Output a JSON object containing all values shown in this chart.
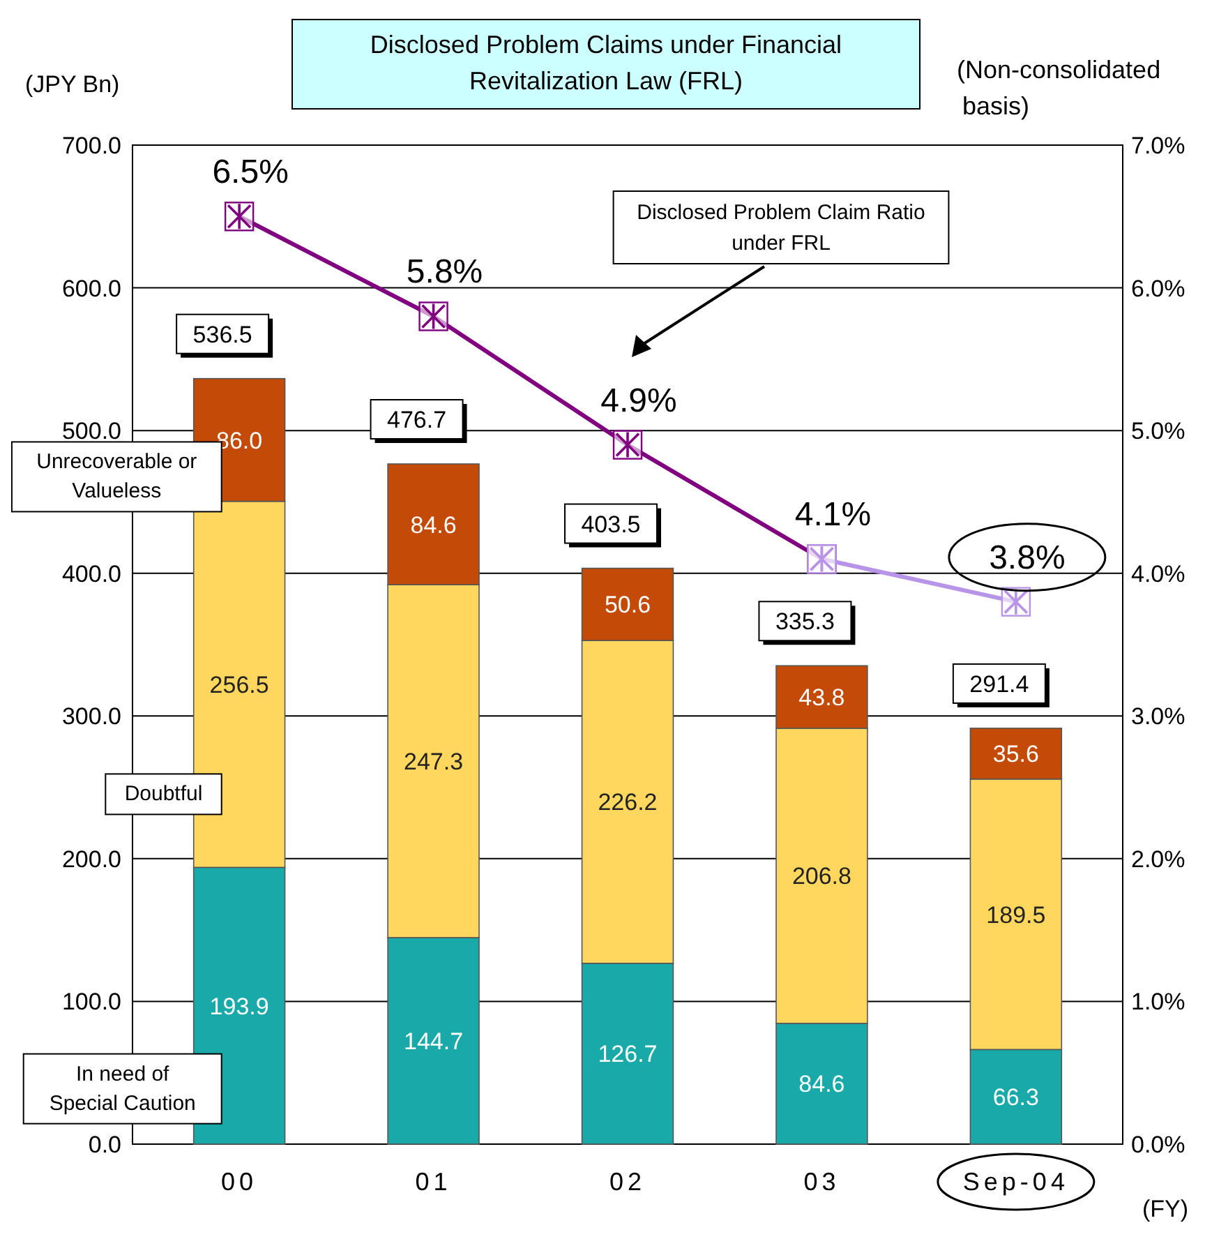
{
  "chart_data": {
    "type": "bar",
    "stacked": true,
    "title": "Disclosed Problem Claims under Financial Revitalization Law (FRL)",
    "ylabel": "(JPY Bn)",
    "y2label": "(Non-consolidated basis)",
    "xlabel": "(FY)",
    "categories": [
      "00",
      "01",
      "02",
      "03",
      "Sep-04"
    ],
    "series": [
      {
        "name": "In need of Special Caution",
        "color": "#1aa9a9",
        "values": [
          193.9,
          144.7,
          126.7,
          84.6,
          66.3
        ],
        "value_labels": [
          "193.9",
          "144.7",
          "126.7",
          "84.6",
          "66.3"
        ]
      },
      {
        "name": "Doubtful",
        "color": "#ffd75e",
        "values": [
          256.5,
          247.3,
          226.2,
          206.8,
          189.5
        ],
        "value_labels": [
          "256.5",
          "247.3",
          "226.2",
          "206.8",
          "189.5"
        ]
      },
      {
        "name": "Unrecoverable or Valueless",
        "color": "#c44a08",
        "values": [
          86.0,
          84.6,
          50.6,
          43.8,
          35.6
        ],
        "value_labels": [
          "86.0",
          "84.6",
          "50.6",
          "43.8",
          "35.6"
        ]
      },
      {
        "type": "line",
        "axis": "y2",
        "color": "#800080",
        "marker": "square",
        "values": [
          6.5,
          5.8,
          4.9,
          4.1,
          null
        ],
        "value_labels": [
          "6.5%",
          "5.8%",
          "4.9%",
          "4.1%",
          null
        ]
      },
      {
        "type": "line",
        "axis": "y2",
        "color": "#b894e8",
        "marker": "square",
        "values": [
          null,
          null,
          null,
          4.1,
          3.8
        ],
        "value_labels": [
          null,
          null,
          null,
          null,
          "3.8%"
        ]
      }
    ],
    "totals": [
      "536.5",
      "476.7",
      "403.5",
      "335.3",
      "291.4"
    ],
    "ylim": [
      0,
      700
    ],
    "yticks": [
      {
        "value": 0,
        "label": "0.0"
      },
      {
        "value": 100,
        "label": "100.0"
      },
      {
        "value": 200,
        "label": "200.0"
      },
      {
        "value": 300,
        "label": "300.0"
      },
      {
        "value": 400,
        "label": "400.0"
      },
      {
        "value": 500,
        "label": "500.0"
      },
      {
        "value": 600,
        "label": "600.0"
      },
      {
        "value": 700,
        "label": "700.0"
      }
    ],
    "y2lim": [
      0,
      7
    ],
    "y2ticks": [
      {
        "value": 0,
        "label": "0.0%"
      },
      {
        "value": 1,
        "label": "1.0%"
      },
      {
        "value": 2,
        "label": "2.0%"
      },
      {
        "value": 3,
        "label": "3.0%"
      },
      {
        "value": 4,
        "label": "4.0%"
      },
      {
        "value": 5,
        "label": "5.0%"
      },
      {
        "value": 6,
        "label": "6.0%"
      },
      {
        "value": 7,
        "label": "7.0%"
      }
    ],
    "grid": "y",
    "annotations": [
      "Disclosed Problem Claim Ratio under FRL"
    ]
  }
}
